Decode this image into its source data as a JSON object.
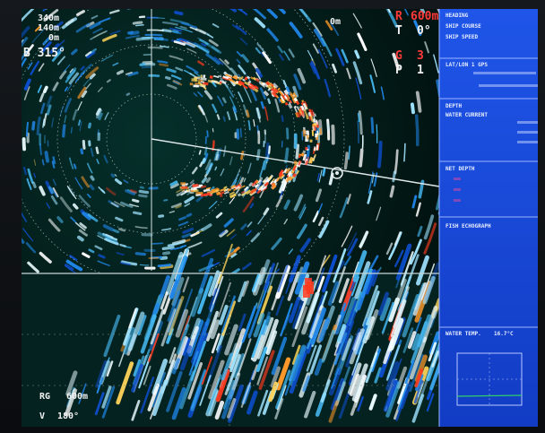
{
  "screen": {
    "background": "#041a18",
    "side_panel_color": "#1a47d8"
  },
  "sonar": {
    "range_list": [
      "340m",
      "140m",
      "0m"
    ],
    "heading": "B 315°",
    "range_label": "R",
    "range_value": "600m",
    "tilt_label": "T",
    "tilt_value": "0°",
    "gain_label": "G",
    "gain_value": "3",
    "pulse_label": "P",
    "pulse_value": "1",
    "mark_text": "0m"
  },
  "lower": {
    "range_label": "RG",
    "range_value": "600m",
    "tilt_label": "V",
    "tilt_value": "180°"
  },
  "side_panel": {
    "heading_text": "HEADING",
    "ship_course_label": "SHIP COURSE",
    "ship_speed_label": "SHIP SPEED",
    "latlon_title": "LAT/LON 1 GPS",
    "depth_title": "DEPTH",
    "current_title": "WATER CURRENT",
    "net_depth_title": "NET DEPTH",
    "fish_title": "FISH ECHOGRAPH",
    "temp_title": "WATER TEMP.",
    "temp_value": "16.7°C"
  }
}
